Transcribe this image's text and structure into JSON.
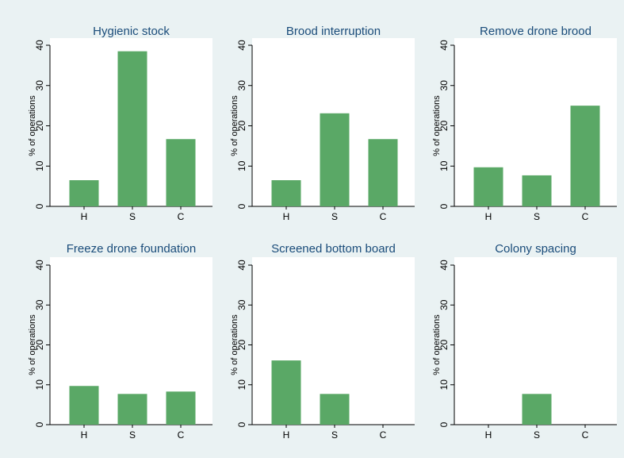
{
  "chart_data": [
    {
      "type": "bar",
      "title": "Hygienic stock",
      "categories": [
        "H",
        "S",
        "C"
      ],
      "values": [
        6.5,
        38.5,
        16.7
      ],
      "ylabel": "% of operations",
      "ylim": [
        0,
        40
      ],
      "yticks": [
        0,
        10,
        20,
        30,
        40
      ]
    },
    {
      "type": "bar",
      "title": "Brood interruption",
      "categories": [
        "H",
        "S",
        "C"
      ],
      "values": [
        6.5,
        23.1,
        16.7
      ],
      "ylabel": "% of operations",
      "ylim": [
        0,
        40
      ],
      "yticks": [
        0,
        10,
        20,
        30,
        40
      ]
    },
    {
      "type": "bar",
      "title": "Remove drone brood",
      "categories": [
        "H",
        "S",
        "C"
      ],
      "values": [
        9.7,
        7.7,
        25.0
      ],
      "ylabel": "% of operations",
      "ylim": [
        0,
        40
      ],
      "yticks": [
        0,
        10,
        20,
        30,
        40
      ]
    },
    {
      "type": "bar",
      "title": "Freeze drone foundation",
      "categories": [
        "H",
        "S",
        "C"
      ],
      "values": [
        9.7,
        7.7,
        8.3
      ],
      "ylabel": "% of operations",
      "ylim": [
        0,
        40
      ],
      "yticks": [
        0,
        10,
        20,
        30,
        40
      ]
    },
    {
      "type": "bar",
      "title": "Screened bottom board",
      "categories": [
        "H",
        "S",
        "C"
      ],
      "values": [
        16.1,
        7.7,
        0
      ],
      "ylabel": "% of operations",
      "ylim": [
        0,
        40
      ],
      "yticks": [
        0,
        10,
        20,
        30,
        40
      ]
    },
    {
      "type": "bar",
      "title": "Colony spacing",
      "categories": [
        "H",
        "S",
        "C"
      ],
      "values": [
        0,
        7.7,
        0
      ],
      "ylabel": "% of operations",
      "ylim": [
        0,
        40
      ],
      "yticks": [
        0,
        10,
        20,
        30,
        40
      ]
    }
  ],
  "colors": {
    "bar": "#5aa866",
    "title": "#1a4c7a",
    "background": "#eaf2f3",
    "plot": "#ffffff"
  }
}
